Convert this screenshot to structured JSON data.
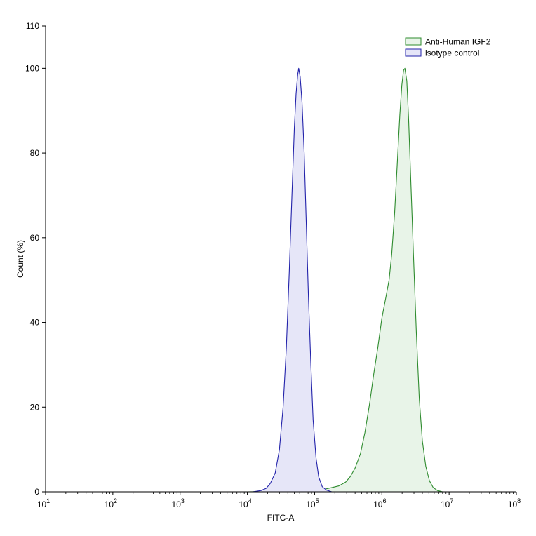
{
  "chart_data": {
    "type": "area",
    "title": "",
    "xlabel": "FITC-A",
    "ylabel": "Count  (%)",
    "x_scale": "log",
    "xlim": [
      10,
      100000000
    ],
    "ylim": [
      0,
      110
    ],
    "grid": false,
    "legend_position": "top-right",
    "x_ticks": [
      {
        "value": 10,
        "base": "10",
        "exp": "1"
      },
      {
        "value": 100,
        "base": "10",
        "exp": "2"
      },
      {
        "value": 1000,
        "base": "10",
        "exp": "3"
      },
      {
        "value": 10000,
        "base": "10",
        "exp": "4"
      },
      {
        "value": 100000,
        "base": "10",
        "exp": "5"
      },
      {
        "value": 1000000,
        "base": "10",
        "exp": "6"
      },
      {
        "value": 10000000,
        "base": "10",
        "exp": "7"
      },
      {
        "value": 100000000,
        "base": "10",
        "exp": "8"
      }
    ],
    "y_ticks": [
      "0",
      "20",
      "40",
      "60",
      "80",
      "100",
      "110"
    ],
    "series": [
      {
        "name": "Anti-Human IGF2",
        "line_color": "#2e8b2e",
        "fill_color": "#e8f4e8",
        "points": [
          [
            10,
            0
          ],
          [
            10000,
            0
          ],
          [
            50000,
            0.2
          ],
          [
            100000,
            0.3
          ],
          [
            130000,
            0.5
          ],
          [
            170000,
            0.9
          ],
          [
            230000,
            1.4
          ],
          [
            290000,
            2.3
          ],
          [
            340000,
            3.6
          ],
          [
            400000,
            5.6
          ],
          [
            480000,
            9
          ],
          [
            560000,
            14
          ],
          [
            660000,
            21
          ],
          [
            760000,
            28
          ],
          [
            870000,
            34
          ],
          [
            1000000,
            41
          ],
          [
            1150000,
            46
          ],
          [
            1280000,
            50
          ],
          [
            1400000,
            56
          ],
          [
            1550000,
            66
          ],
          [
            1700000,
            78
          ],
          [
            1850000,
            89
          ],
          [
            1980000,
            96
          ],
          [
            2100000,
            99.5
          ],
          [
            2200000,
            100
          ],
          [
            2350000,
            97
          ],
          [
            2500000,
            88
          ],
          [
            2700000,
            73
          ],
          [
            2950000,
            56
          ],
          [
            3250000,
            38
          ],
          [
            3600000,
            22
          ],
          [
            4000000,
            12
          ],
          [
            4500000,
            6
          ],
          [
            5100000,
            2.6
          ],
          [
            5800000,
            1
          ],
          [
            6700000,
            0.3
          ],
          [
            8000000,
            0
          ],
          [
            100000000,
            0
          ]
        ]
      },
      {
        "name": "isotype control",
        "line_color": "#2222aa",
        "fill_color": "#e6e6f8",
        "points": [
          [
            10,
            0
          ],
          [
            12000,
            0
          ],
          [
            16000,
            0.3
          ],
          [
            19000,
            0.8
          ],
          [
            22000,
            2
          ],
          [
            26000,
            4.5
          ],
          [
            30000,
            10
          ],
          [
            34000,
            20
          ],
          [
            38000,
            34
          ],
          [
            42000,
            52
          ],
          [
            46000,
            70
          ],
          [
            50000,
            86
          ],
          [
            53000,
            94
          ],
          [
            56000,
            98.5
          ],
          [
            58000,
            100
          ],
          [
            61000,
            98
          ],
          [
            65000,
            92
          ],
          [
            70000,
            80
          ],
          [
            75000,
            64
          ],
          [
            81000,
            46
          ],
          [
            88000,
            30
          ],
          [
            95000,
            17
          ],
          [
            105000,
            8
          ],
          [
            115000,
            3.5
          ],
          [
            130000,
            1.2
          ],
          [
            150000,
            0.4
          ],
          [
            180000,
            0
          ],
          [
            100000000,
            0
          ]
        ]
      }
    ]
  }
}
